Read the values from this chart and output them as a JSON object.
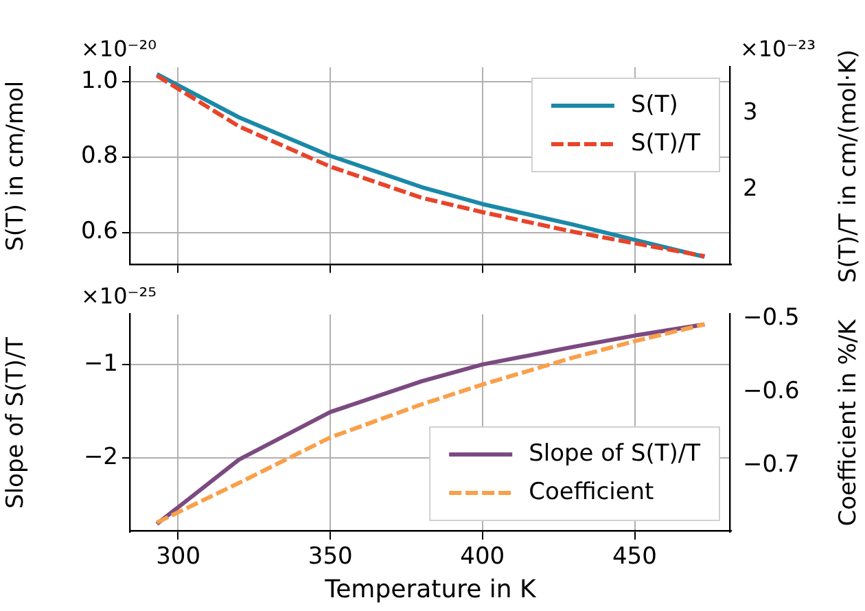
{
  "chart_data": [
    {
      "type": "line",
      "ylabel": "S(T) in cm/mol",
      "y2label": "S(T)/T in cm/(mol·K)",
      "annotations": [
        "×10⁻²⁰",
        "×10⁻²³"
      ],
      "xlim": [
        284.3,
        481.5
      ],
      "xticks": [
        300,
        350,
        400,
        450
      ],
      "ylim": [
        0.514,
        1.038
      ],
      "yticks": [
        0.6,
        0.8,
        {
          "value": 1,
          "label": "1.0"
        }
      ],
      "y2lim": [
        1.007,
        3.61
      ],
      "y2ticks": [
        2,
        3
      ],
      "tick_labels": "y",
      "grid": true,
      "legend": "top right",
      "series": [
        {
          "name": "S(T)",
          "color": "#1a89a8",
          "line_style": "solid",
          "x": [
            293,
            320,
            350,
            380,
            400,
            430,
            450,
            473
          ],
          "values": [
            1.02,
            0.905,
            0.803,
            0.72,
            0.675,
            0.62,
            0.58,
            0.535
          ]
        },
        {
          "name": "S(T)/T",
          "color": "#e8442a",
          "line_style": "dashed",
          "axis": "y2",
          "x": [
            293,
            320,
            350,
            380,
            400,
            430,
            450,
            473
          ],
          "values": [
            3.5,
            2.83,
            2.3,
            1.89,
            1.7,
            1.44,
            1.29,
            1.12
          ]
        }
      ]
    },
    {
      "type": "line",
      "xlabel": "Temperature in K",
      "ylabel": "Slope of S(T)/T",
      "y2label": "Coefficient in %/K",
      "annotations": [
        "×10⁻²⁵"
      ],
      "xlim": [
        284.3,
        481.5
      ],
      "xticks": [
        300,
        350,
        400,
        450
      ],
      "ylim": [
        -2.79,
        -0.463
      ],
      "yticks": [
        {
          "value": -2,
          "label": "−2"
        },
        {
          "value": -1,
          "label": "−1"
        }
      ],
      "y2lim": [
        -0.79,
        -0.4945
      ],
      "y2ticks": [
        {
          "value": -0.7,
          "label": "−0.7"
        },
        {
          "value": -0.6,
          "label": "−0.6"
        },
        {
          "value": -0.5,
          "label": "−0.5"
        }
      ],
      "grid": true,
      "legend": "bottom right",
      "series": [
        {
          "name": "Slope of S(T)/T",
          "color": "#7b4a80",
          "line_style": "solid",
          "x": [
            293,
            320,
            350,
            380,
            400,
            430,
            450,
            473
          ],
          "values": [
            -2.71,
            -2.02,
            -1.51,
            -1.18,
            -1.0,
            -0.81,
            -0.69,
            -0.57
          ]
        },
        {
          "name": "Coefficient",
          "color": "#f9a04a",
          "line_style": "dashed",
          "axis": "y2",
          "x": [
            293,
            320,
            350,
            380,
            400,
            430,
            450,
            473
          ],
          "values": [
            -0.778,
            -0.724,
            -0.662,
            -0.617,
            -0.59,
            -0.553,
            -0.531,
            -0.508
          ]
        }
      ]
    }
  ]
}
